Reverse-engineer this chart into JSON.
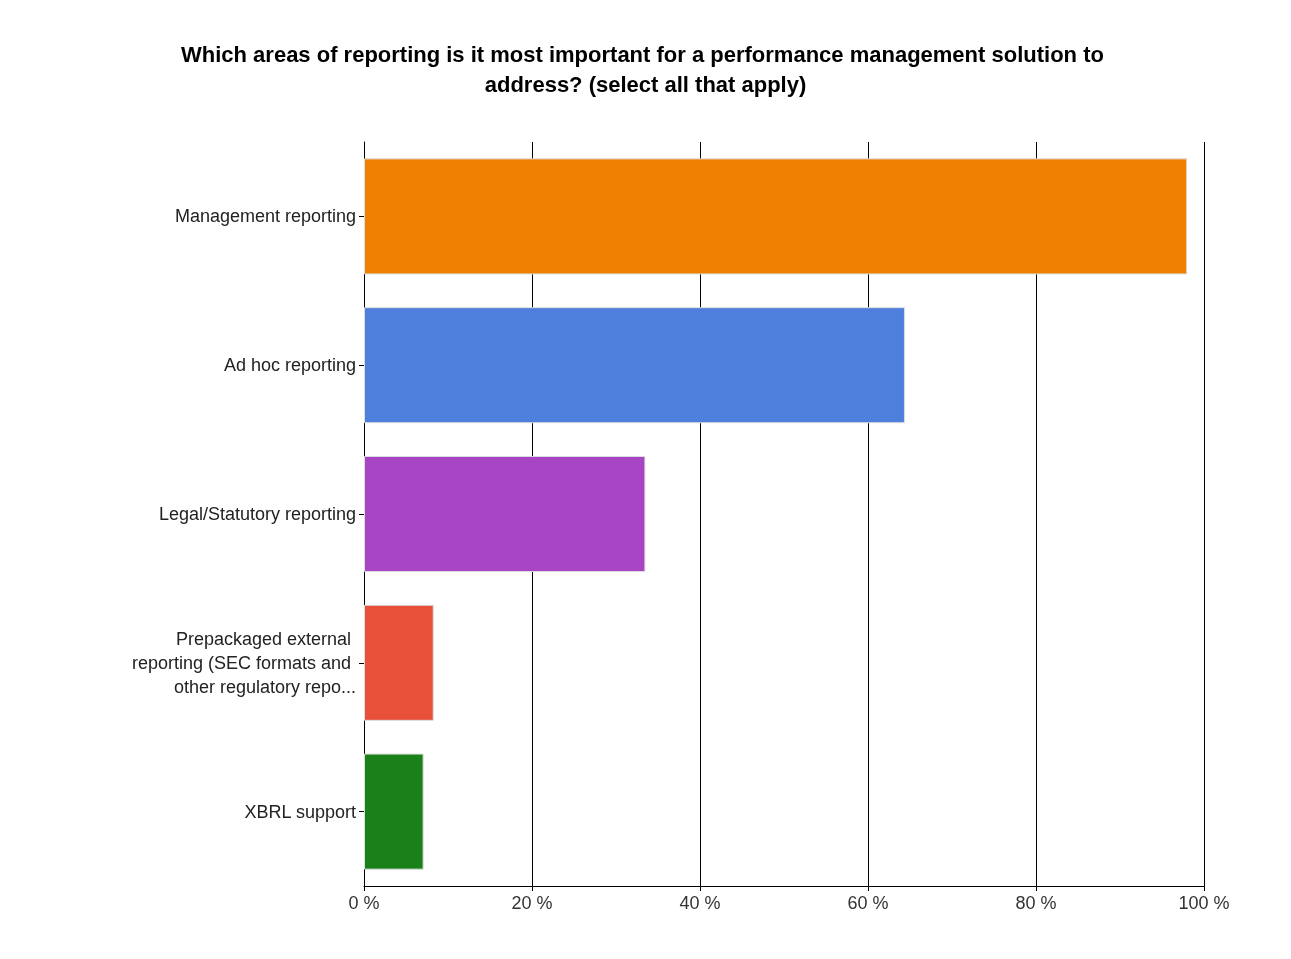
{
  "chart_data": {
    "type": "bar",
    "orientation": "horizontal",
    "title": "Which areas of reporting is it most important for a performance management solution to address? (select all that apply)",
    "categories": [
      "Management reporting",
      "Ad hoc reporting",
      "Legal/Statutory reporting",
      "Prepackaged external reporting (SEC formats and other regulatory repo...",
      "XBRL support"
    ],
    "values": [
      98.0,
      64.4,
      33.5,
      8.3,
      7.1
    ],
    "colors": [
      "#f08000",
      "#4f7fdc",
      "#a845c4",
      "#e8503a",
      "#1a801a"
    ],
    "xlim": [
      0,
      100
    ],
    "xticks": [
      {
        "value": 0,
        "label": "0 %"
      },
      {
        "value": 20,
        "label": "20 %"
      },
      {
        "value": 40,
        "label": "40 %"
      },
      {
        "value": 60,
        "label": "60 %"
      },
      {
        "value": 80,
        "label": "80 %"
      },
      {
        "value": 100,
        "label": "100 %"
      }
    ],
    "grid": "x",
    "legend": false
  }
}
